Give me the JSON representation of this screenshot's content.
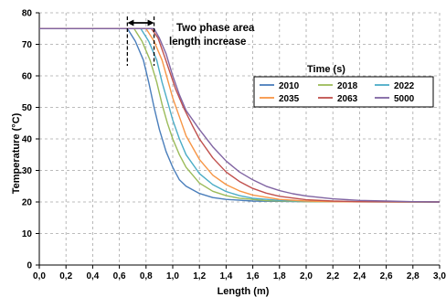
{
  "chart_data": {
    "type": "line",
    "title": "",
    "xlabel": "Length (m)",
    "ylabel": "Temperature (°C)",
    "xlim": [
      0,
      3.0
    ],
    "ylim": [
      0,
      80
    ],
    "x_ticks": [
      "0,0",
      "0,2",
      "0,4",
      "0,6",
      "0,8",
      "1,0",
      "1,2",
      "1,4",
      "1,6",
      "1,8",
      "2,0",
      "2,2",
      "2,4",
      "2,6",
      "2,8",
      "3,0"
    ],
    "y_ticks": [
      "0",
      "10",
      "20",
      "30",
      "40",
      "50",
      "60",
      "70",
      "80"
    ],
    "grid": "dashed gridlines",
    "legend": {
      "title": "Time (s)",
      "placement": "right, inside plot area"
    },
    "annotation": {
      "line1": "Two phase area",
      "line2": "length increase",
      "x_from": 0.66,
      "x_to": 0.86
    },
    "series": [
      {
        "name": "2010",
        "color": "#4a7ebb",
        "points": [
          [
            0,
            75
          ],
          [
            0.66,
            75
          ],
          [
            0.72,
            71
          ],
          [
            0.78,
            65
          ],
          [
            0.82,
            58
          ],
          [
            0.86,
            50
          ],
          [
            0.9,
            43
          ],
          [
            0.95,
            36
          ],
          [
            1.0,
            31
          ],
          [
            1.05,
            27
          ],
          [
            1.1,
            25
          ],
          [
            1.2,
            22.7
          ],
          [
            1.3,
            21.4
          ],
          [
            1.4,
            20.8
          ],
          [
            1.6,
            20.3
          ],
          [
            2.0,
            20.1
          ],
          [
            3.0,
            20
          ]
        ]
      },
      {
        "name": "2018",
        "color": "#9bbb59",
        "points": [
          [
            0,
            75
          ],
          [
            0.71,
            75
          ],
          [
            0.77,
            71
          ],
          [
            0.83,
            65
          ],
          [
            0.88,
            58
          ],
          [
            0.92,
            51
          ],
          [
            0.96,
            45
          ],
          [
            1.0,
            40
          ],
          [
            1.05,
            35
          ],
          [
            1.1,
            31
          ],
          [
            1.2,
            26
          ],
          [
            1.3,
            23.4
          ],
          [
            1.4,
            22
          ],
          [
            1.5,
            21.2
          ],
          [
            1.7,
            20.4
          ],
          [
            2.0,
            20.1
          ],
          [
            3.0,
            20
          ]
        ]
      },
      {
        "name": "2022",
        "color": "#4bacc6",
        "points": [
          [
            0,
            75
          ],
          [
            0.76,
            75
          ],
          [
            0.82,
            71
          ],
          [
            0.88,
            65
          ],
          [
            0.92,
            58
          ],
          [
            0.96,
            52
          ],
          [
            1.0,
            46
          ],
          [
            1.05,
            40
          ],
          [
            1.1,
            35
          ],
          [
            1.2,
            29
          ],
          [
            1.3,
            25.5
          ],
          [
            1.4,
            23.3
          ],
          [
            1.5,
            22
          ],
          [
            1.6,
            21.2
          ],
          [
            1.8,
            20.5
          ],
          [
            2.0,
            20.2
          ],
          [
            3.0,
            20
          ]
        ]
      },
      {
        "name": "2035",
        "color": "#f79646",
        "points": [
          [
            0,
            75
          ],
          [
            0.8,
            75
          ],
          [
            0.86,
            71
          ],
          [
            0.92,
            65
          ],
          [
            0.96,
            59
          ],
          [
            1.0,
            53
          ],
          [
            1.05,
            47
          ],
          [
            1.1,
            41
          ],
          [
            1.2,
            33.5
          ],
          [
            1.3,
            28.5
          ],
          [
            1.4,
            25.5
          ],
          [
            1.5,
            23.5
          ],
          [
            1.6,
            22.2
          ],
          [
            1.8,
            20.8
          ],
          [
            2.0,
            20.3
          ],
          [
            2.2,
            20.1
          ],
          [
            3.0,
            20
          ]
        ]
      },
      {
        "name": "2063",
        "color": "#c0504d",
        "points": [
          [
            0,
            75
          ],
          [
            0.84,
            75
          ],
          [
            0.89,
            72
          ],
          [
            0.94,
            66
          ],
          [
            0.98,
            61
          ],
          [
            1.02,
            56
          ],
          [
            1.08,
            50
          ],
          [
            1.15,
            44
          ],
          [
            1.2,
            40
          ],
          [
            1.3,
            34
          ],
          [
            1.4,
            29.5
          ],
          [
            1.5,
            26.5
          ],
          [
            1.6,
            24.3
          ],
          [
            1.7,
            22.8
          ],
          [
            1.8,
            21.8
          ],
          [
            2.0,
            20.7
          ],
          [
            2.2,
            20.3
          ],
          [
            2.4,
            20.1
          ],
          [
            3.0,
            20
          ]
        ]
      },
      {
        "name": "5000",
        "color": "#8064a2",
        "points": [
          [
            0,
            75
          ],
          [
            0.86,
            75
          ],
          [
            0.9,
            72
          ],
          [
            0.95,
            67
          ],
          [
            1.0,
            60
          ],
          [
            1.05,
            54
          ],
          [
            1.1,
            49
          ],
          [
            1.2,
            43
          ],
          [
            1.3,
            37.5
          ],
          [
            1.4,
            33
          ],
          [
            1.5,
            29.5
          ],
          [
            1.6,
            27
          ],
          [
            1.7,
            25
          ],
          [
            1.8,
            23.6
          ],
          [
            1.9,
            22.6
          ],
          [
            2.0,
            21.9
          ],
          [
            2.2,
            21
          ],
          [
            2.4,
            20.5
          ],
          [
            2.6,
            20.3
          ],
          [
            2.8,
            20.1
          ],
          [
            3.0,
            20
          ]
        ]
      }
    ]
  }
}
